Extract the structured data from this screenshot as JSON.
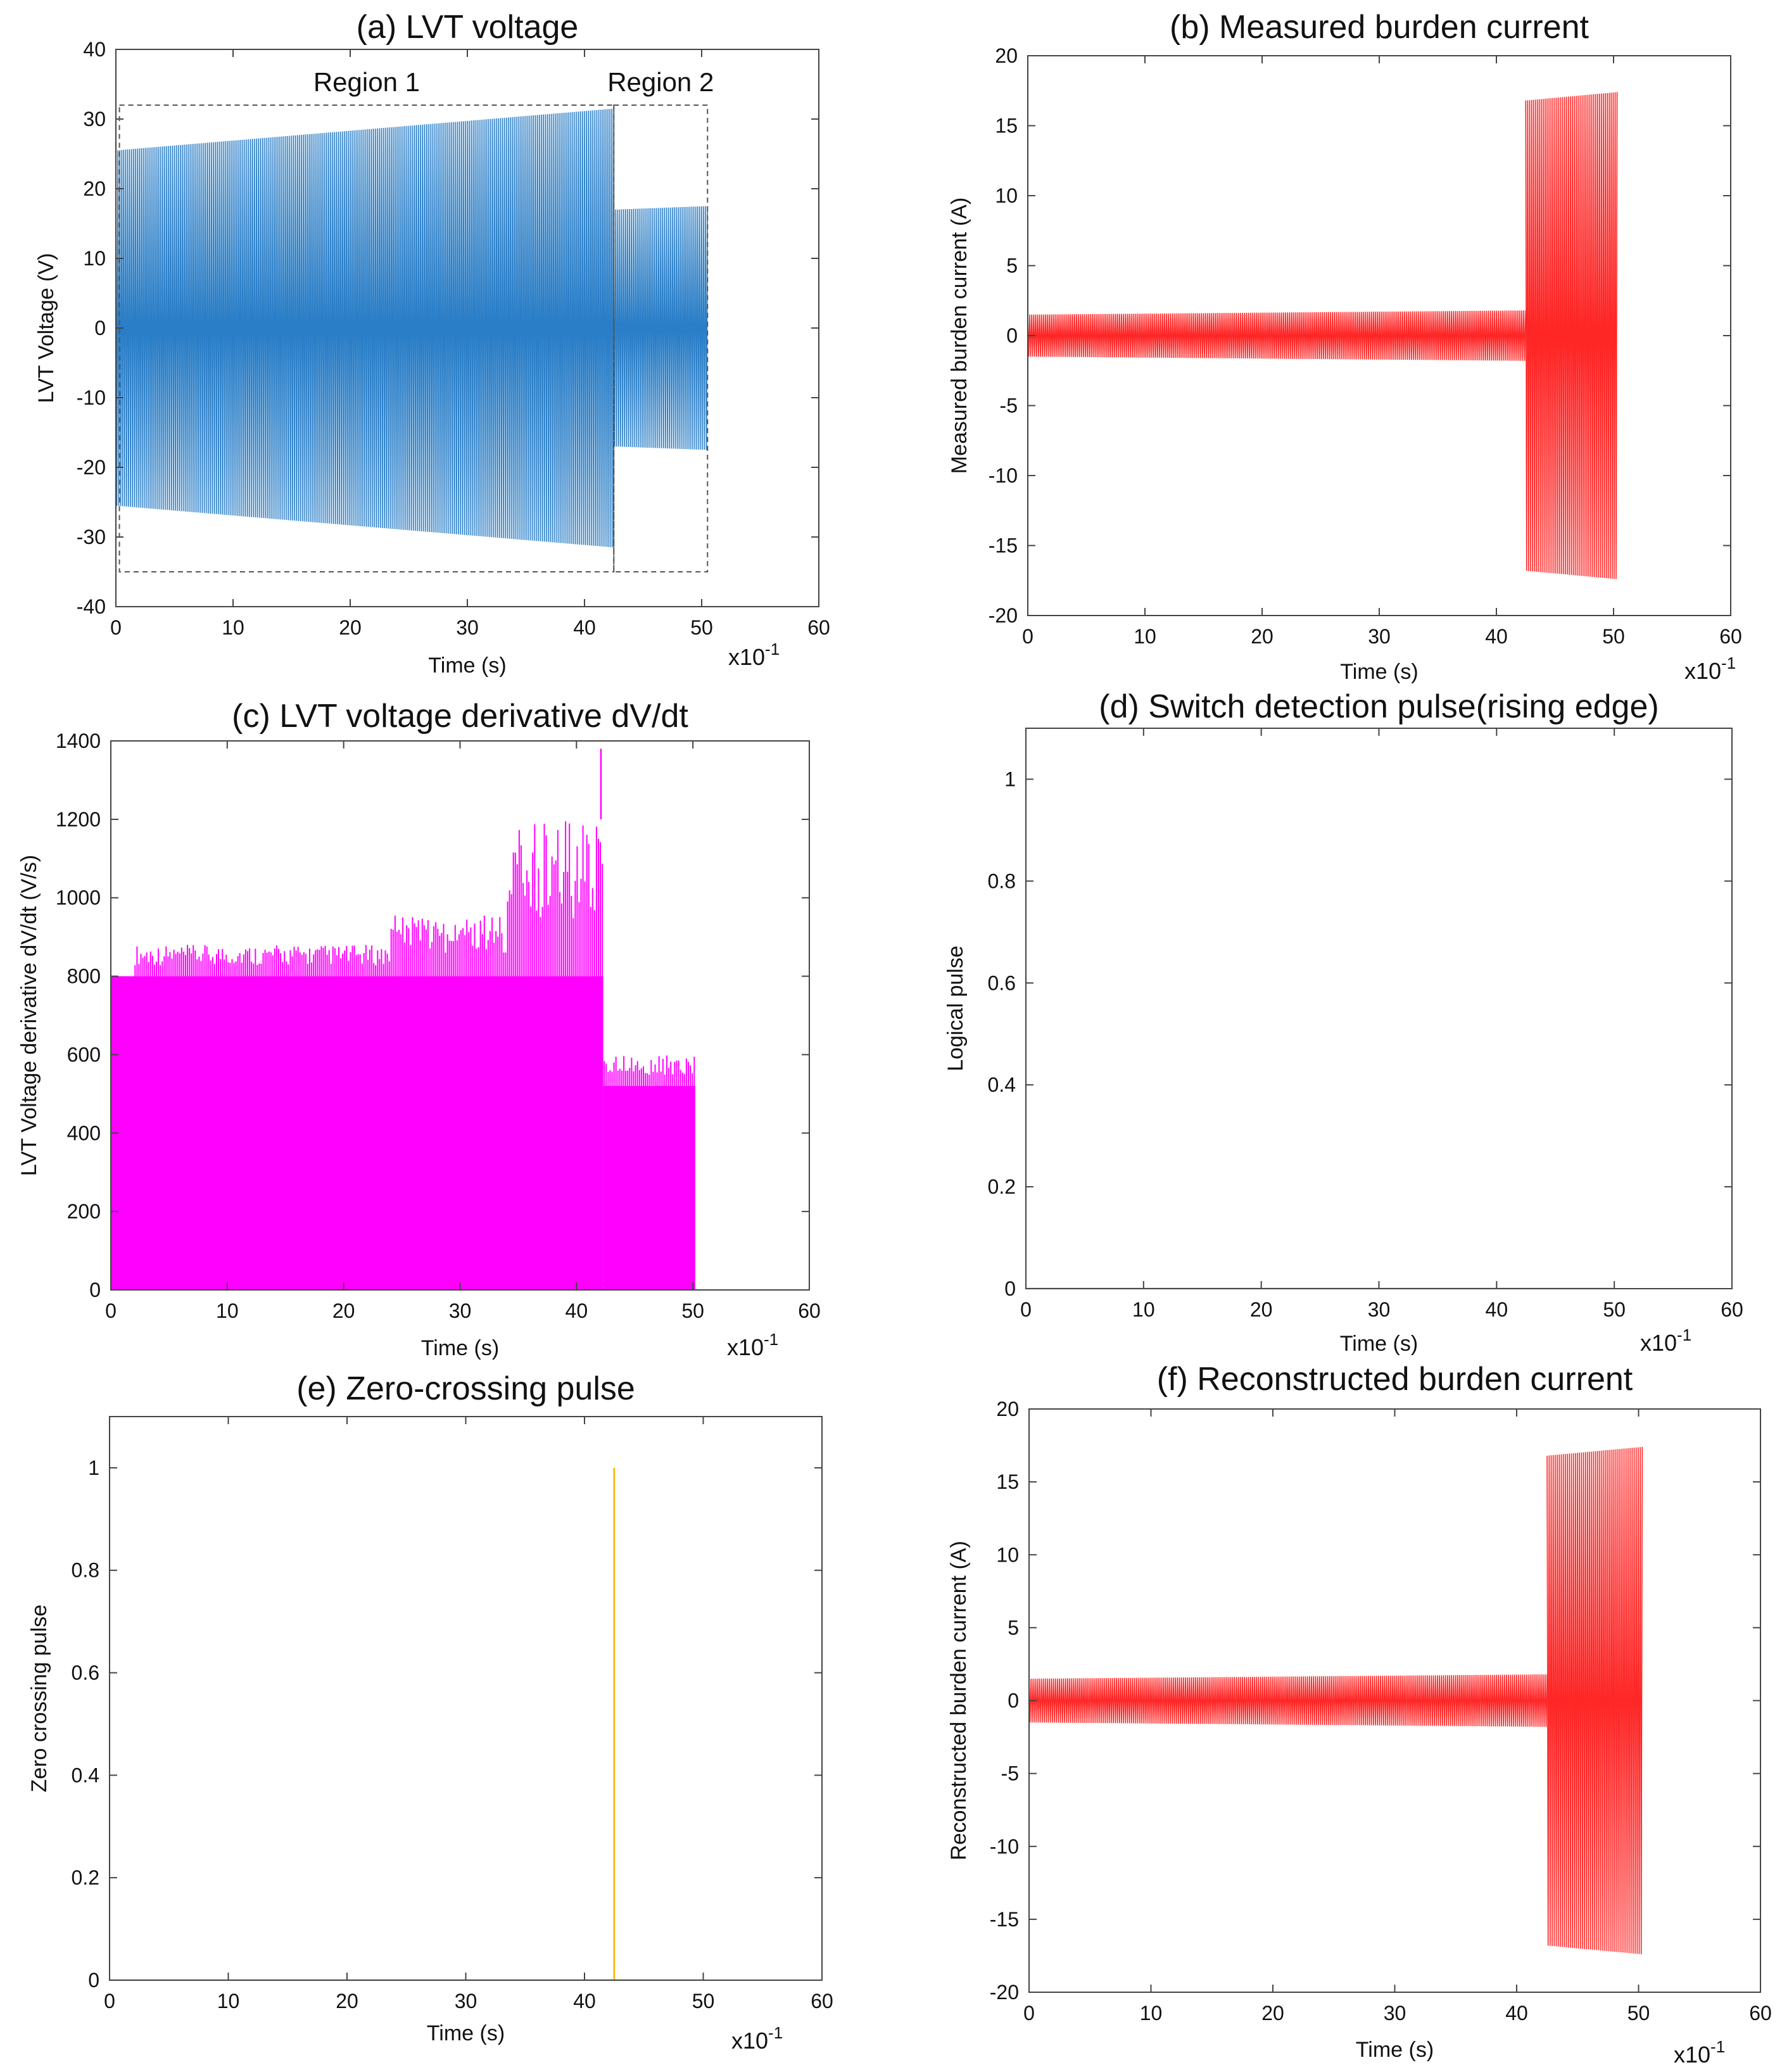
{
  "figure": {
    "exponent_base": "x10",
    "exponent_power": "-1"
  },
  "colors": {
    "blue": "#1f77c4",
    "red": "#ff1a1a",
    "magenta": "#ff00ff",
    "orange": "#f5b000",
    "pulse_blue": "#2a7fd0"
  },
  "chart_data": [
    {
      "id": "a",
      "type": "line",
      "title": "(a) LVT voltage",
      "xlabel": "Time (s)",
      "ylabel": "LVT Voltage (V)",
      "x_scale_note": "x10^-1",
      "xlim": [
        0,
        60
      ],
      "ylim": [
        -40,
        40
      ],
      "xticks": [
        0,
        10,
        20,
        30,
        40,
        50,
        60
      ],
      "yticks": [
        -40,
        -30,
        -20,
        -10,
        0,
        10,
        20,
        30,
        40
      ],
      "series": [
        {
          "name": "LVT voltage",
          "color": "#1f77c4",
          "kind": "oscillation",
          "segments": [
            {
              "x_start": 0,
              "x_end": 42.5,
              "amp_start": 25.5,
              "amp_end": 31.5
            },
            {
              "x_start": 42.5,
              "x_end": 50.5,
              "amp_start": 17,
              "amp_end": 17.5
            }
          ]
        }
      ],
      "regions": [
        {
          "label": "Region 1",
          "x0": 0.3,
          "x1": 42.5,
          "y0": -35,
          "y1": 32
        },
        {
          "label": "Region 2",
          "x0": 42.5,
          "x1": 50.5,
          "y0": -35,
          "y1": 32
        }
      ]
    },
    {
      "id": "b",
      "type": "line",
      "title": "(b) Measured burden current",
      "xlabel": "Time (s)",
      "ylabel": "Measured burden current (A)",
      "x_scale_note": "x10^-1",
      "xlim": [
        0,
        60
      ],
      "ylim": [
        -20,
        20
      ],
      "xticks": [
        0,
        10,
        20,
        30,
        40,
        50,
        60
      ],
      "yticks": [
        -20,
        -15,
        -10,
        -5,
        0,
        5,
        10,
        15,
        20
      ],
      "series": [
        {
          "name": "Measured burden current",
          "color": "#ff1a1a",
          "kind": "oscillation",
          "segments": [
            {
              "x_start": 0,
              "x_end": 42.5,
              "amp_start": 1.5,
              "amp_end": 1.8
            },
            {
              "x_start": 42.5,
              "x_end": 50.3,
              "amp_start": 16.8,
              "amp_end": 17.4
            }
          ]
        }
      ]
    },
    {
      "id": "c",
      "type": "area",
      "title": "(c) LVT voltage derivative dV/dt",
      "xlabel": "Time (s)",
      "ylabel": "LVT Voltage derivative dV/dt (V/s)",
      "x_scale_note": "x10^-1",
      "xlim": [
        0,
        60
      ],
      "ylim": [
        0,
        1400
      ],
      "xticks": [
        0,
        10,
        20,
        30,
        40,
        50,
        60
      ],
      "yticks": [
        0,
        200,
        400,
        600,
        800,
        1000,
        1200,
        1400
      ],
      "series": [
        {
          "name": "dV/dt",
          "color": "#ff00ff",
          "kind": "filled",
          "base_levels": [
            {
              "x_start": 0,
              "x_end": 42.3,
              "level": 800
            },
            {
              "x_start": 42.3,
              "x_end": 50.2,
              "level": 520
            }
          ],
          "spikes": [
            {
              "x_start": 2,
              "x_end": 24,
              "max": 880
            },
            {
              "x_start": 24,
              "x_end": 34,
              "max": 960
            },
            {
              "x_start": 34,
              "x_end": 42.3,
              "max": 1200
            },
            {
              "x_start": 42.3,
              "x_end": 50.2,
              "max": 600
            }
          ],
          "peak": {
            "x": 42.1,
            "y": 1380
          }
        }
      ]
    },
    {
      "id": "d",
      "type": "line",
      "title": "(d) Switch detection pulse(rising edge)",
      "xlabel": "Time (s)",
      "ylabel": "Logical pulse",
      "x_scale_note": "x10^-1",
      "xlim": [
        0,
        60
      ],
      "ylim": [
        0,
        1.1
      ],
      "xticks": [
        0,
        10,
        20,
        30,
        40,
        50,
        60
      ],
      "yticks": [
        0,
        0.2,
        0.4,
        0.6,
        0.8,
        1
      ],
      "series": [
        {
          "name": "Logical pulse",
          "color": "#2a7fd0",
          "kind": "line",
          "x": [
            0,
            50
          ],
          "y": [
            0,
            0
          ]
        }
      ]
    },
    {
      "id": "e",
      "type": "line",
      "title": "(e) Zero-crossing pulse",
      "xlabel": "Time (s)",
      "ylabel": "Zero crossing pulse",
      "x_scale_note": "x10^-1",
      "xlim": [
        0,
        60
      ],
      "ylim": [
        0,
        1.1
      ],
      "xticks": [
        0,
        10,
        20,
        30,
        40,
        50,
        60
      ],
      "yticks": [
        0,
        0.2,
        0.4,
        0.6,
        0.8,
        1
      ],
      "series": [
        {
          "name": "Zero crossing pulse",
          "color": "#f5b000",
          "kind": "line",
          "x": [
            0,
            42.5,
            42.5,
            42.5,
            50
          ],
          "y": [
            0,
            0,
            1,
            0,
            0
          ]
        }
      ]
    },
    {
      "id": "f",
      "type": "line",
      "title": "(f) Reconstructed burden current",
      "xlabel": "Time (s)",
      "ylabel": "Reconstructed burden current (A)",
      "x_scale_note": "x10^-1",
      "xlim": [
        0,
        60
      ],
      "ylim": [
        -20,
        20
      ],
      "xticks": [
        0,
        10,
        20,
        30,
        40,
        50,
        60
      ],
      "yticks": [
        -20,
        -15,
        -10,
        -5,
        0,
        5,
        10,
        15,
        20
      ],
      "series": [
        {
          "name": "Reconstructed burden current",
          "color": "#ff1a1a",
          "kind": "oscillation",
          "segments": [
            {
              "x_start": 0,
              "x_end": 42.5,
              "amp_start": 1.5,
              "amp_end": 1.8
            },
            {
              "x_start": 42.5,
              "x_end": 50.3,
              "amp_start": 16.8,
              "amp_end": 17.4
            }
          ]
        }
      ]
    }
  ]
}
